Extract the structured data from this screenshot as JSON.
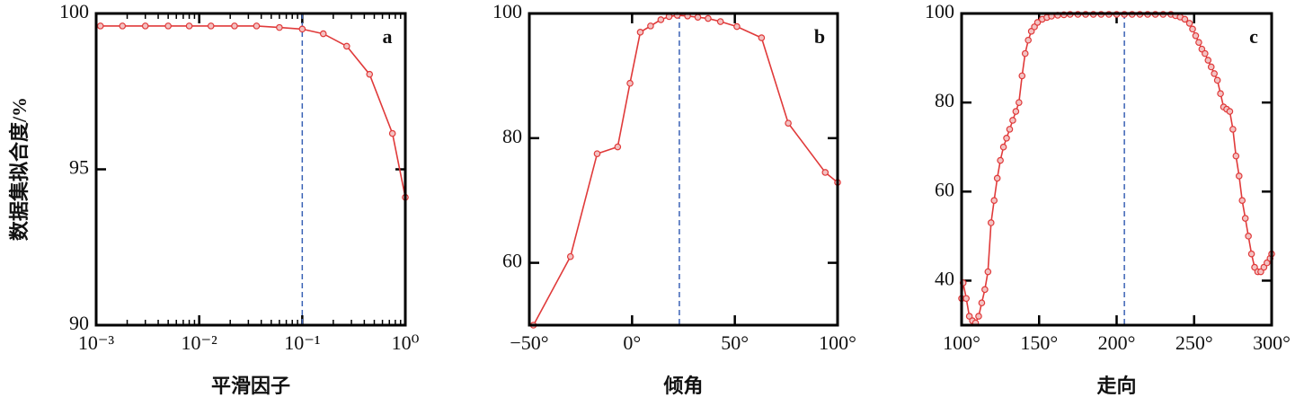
{
  "chart_data": [
    {
      "type": "line",
      "ylabel": "数据集拟合度/%",
      "xlabel": "平滑因子",
      "panel_label": "a",
      "xscale": "log",
      "xlim": [
        0.001,
        1
      ],
      "ylim": [
        90,
        100
      ],
      "xticks": [
        {
          "value": 0.001,
          "label": "10⁻³"
        },
        {
          "value": 0.01,
          "label": "10⁻²"
        },
        {
          "value": 0.1,
          "label": "10⁻¹"
        },
        {
          "value": 1,
          "label": "10⁰"
        }
      ],
      "yticks": [
        90,
        95,
        100
      ],
      "reference_x": 0.1,
      "color": "#e03a3a",
      "x": [
        0.0011,
        0.0018,
        0.003,
        0.005,
        0.008,
        0.013,
        0.022,
        0.036,
        0.06,
        0.1,
        0.16,
        0.27,
        0.45,
        0.75,
        1.0
      ],
      "values": [
        99.6,
        99.6,
        99.6,
        99.6,
        99.6,
        99.6,
        99.6,
        99.6,
        99.55,
        99.5,
        99.35,
        98.95,
        98.05,
        96.15,
        94.1
      ]
    },
    {
      "type": "line",
      "xlabel": "倾角",
      "panel_label": "b",
      "xlim": [
        -50,
        100
      ],
      "ylim": [
        50,
        100
      ],
      "xticks": [
        {
          "value": -50,
          "label": "−50°"
        },
        {
          "value": 0,
          "label": "0°"
        },
        {
          "value": 50,
          "label": "50°"
        },
        {
          "value": 100,
          "label": "100°"
        }
      ],
      "yticks": [
        60,
        80,
        100
      ],
      "reference_x": 23,
      "color": "#e03a3a",
      "x": [
        -48,
        -30,
        -17,
        -7,
        -1,
        4,
        9,
        14,
        18,
        22,
        27,
        32,
        37,
        43,
        51,
        63,
        76,
        94,
        100
      ],
      "values": [
        50,
        61,
        77.5,
        78.6,
        88.8,
        97,
        98,
        99,
        99.5,
        99.7,
        99.6,
        99.4,
        99.2,
        98.7,
        97.9,
        96.1,
        82.4,
        74.5,
        72.9
      ]
    },
    {
      "type": "line",
      "xlabel": "走向",
      "panel_label": "c",
      "xlim": [
        100,
        300
      ],
      "ylim": [
        30,
        100
      ],
      "xticks": [
        {
          "value": 100,
          "label": "100°"
        },
        {
          "value": 150,
          "label": "150°"
        },
        {
          "value": 200,
          "label": "200°"
        },
        {
          "value": 250,
          "label": "250°"
        },
        {
          "value": 300,
          "label": "300°"
        }
      ],
      "yticks": [
        40,
        60,
        80,
        100
      ],
      "reference_x": 205,
      "color": "#e03a3a",
      "x": [
        100,
        101,
        103,
        105,
        107,
        109,
        111,
        113,
        115,
        117,
        119,
        121,
        123,
        125,
        127,
        129,
        131,
        133,
        135,
        137,
        139,
        141,
        143,
        145,
        147,
        149,
        152,
        155,
        158,
        162,
        166,
        170,
        175,
        180,
        185,
        190,
        195,
        200,
        205,
        210,
        215,
        220,
        225,
        230,
        235,
        238,
        241,
        244,
        247,
        249,
        251,
        253,
        255,
        257,
        259,
        261,
        263,
        265,
        267,
        269,
        271,
        273,
        275,
        277,
        279,
        281,
        283,
        285,
        287,
        289,
        291,
        293,
        295,
        297,
        299,
        300
      ],
      "values": [
        36,
        39.5,
        36,
        32,
        31,
        30.5,
        32,
        35,
        38,
        42,
        53,
        58,
        63,
        67,
        70,
        72,
        74,
        76,
        78,
        80,
        86,
        91,
        94,
        96,
        97,
        98,
        98.7,
        99.1,
        99.4,
        99.6,
        99.7,
        99.8,
        99.8,
        99.8,
        99.8,
        99.8,
        99.8,
        99.8,
        99.8,
        99.8,
        99.8,
        99.8,
        99.8,
        99.8,
        99.8,
        99.5,
        99.2,
        98.7,
        97.8,
        96.5,
        95,
        93.5,
        92,
        91,
        89.5,
        88,
        86.5,
        85,
        82,
        79,
        78.5,
        78,
        74,
        68,
        63.5,
        58,
        54,
        50,
        46,
        43,
        42,
        42,
        43,
        44,
        45,
        46
      ]
    }
  ]
}
